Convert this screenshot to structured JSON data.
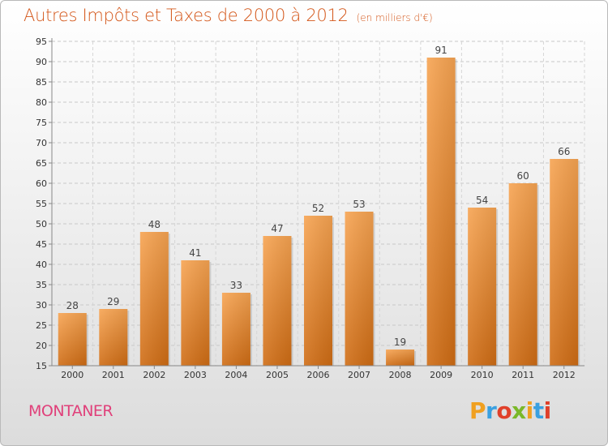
{
  "header": {
    "title": "Autres Impôts et Taxes de 2000 à 2012",
    "subtitle": "(en milliers d'€)"
  },
  "footer": {
    "commune": "MONTANER",
    "logo_letters": [
      "P",
      "r",
      "o",
      "x",
      "i",
      "t",
      "i"
    ],
    "logo_colors": [
      "#f0a020",
      "#3aa0e0",
      "#e0402a",
      "#7ab828",
      "#f0a020",
      "#3aa0e0",
      "#e0402a"
    ]
  },
  "chart_data": {
    "type": "bar",
    "title": "Autres Impôts et Taxes de 2000 à 2012",
    "subtitle": "(en milliers d'€)",
    "categories": [
      "2000",
      "2001",
      "2002",
      "2003",
      "2004",
      "2005",
      "2006",
      "2007",
      "2008",
      "2009",
      "2010",
      "2011",
      "2012"
    ],
    "values": [
      28,
      29,
      48,
      41,
      33,
      47,
      52,
      53,
      19,
      91,
      54,
      60,
      66
    ],
    "ylim": [
      15,
      95
    ],
    "yticks": [
      15,
      20,
      25,
      30,
      35,
      40,
      45,
      50,
      55,
      60,
      65,
      70,
      75,
      80,
      85,
      90,
      95
    ],
    "grid": true,
    "bar_color": "#f0902c"
  }
}
